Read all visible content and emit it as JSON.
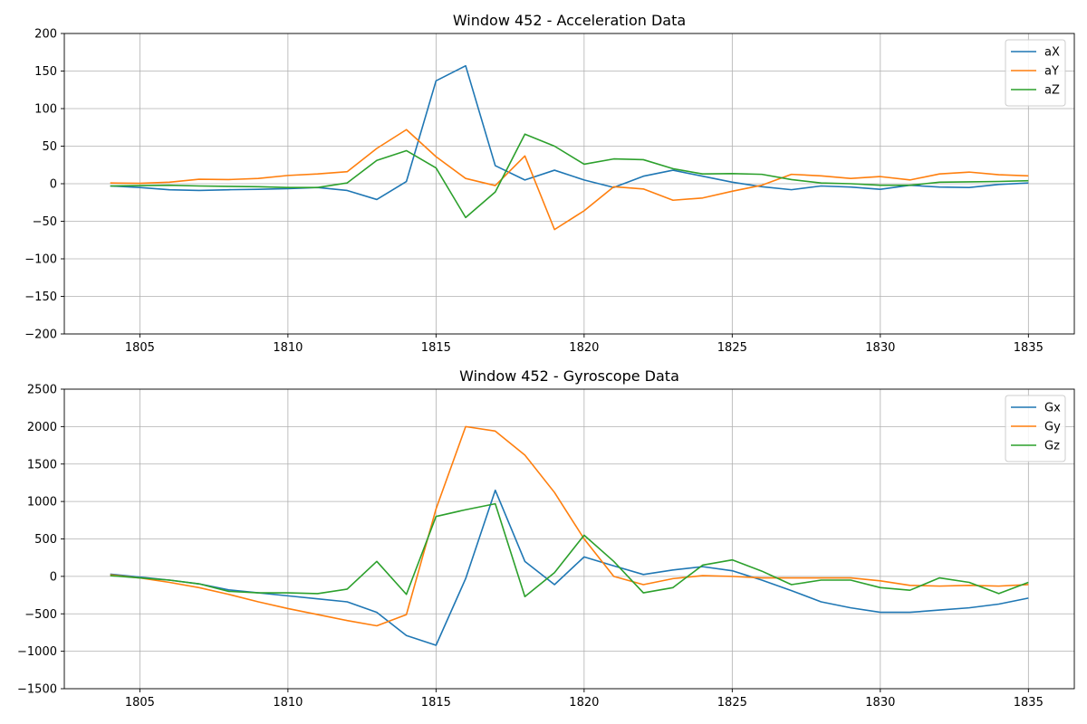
{
  "chart_data": [
    {
      "type": "line",
      "title": "Window 452 - Acceleration Data",
      "xlabel": "",
      "ylabel": "",
      "xlim": [
        1802.45,
        1836.55
      ],
      "ylim": [
        -200,
        200
      ],
      "xticks": [
        1805,
        1810,
        1815,
        1820,
        1825,
        1830,
        1835
      ],
      "yticks": [
        -200,
        -150,
        -100,
        -50,
        0,
        50,
        100,
        150,
        200
      ],
      "grid": true,
      "legend_position": "top-right",
      "x": [
        1804,
        1805,
        1806,
        1807,
        1808,
        1809,
        1810,
        1811,
        1812,
        1813,
        1814,
        1815,
        1816,
        1817,
        1818,
        1819,
        1820,
        1821,
        1822,
        1823,
        1824,
        1825,
        1826,
        1827,
        1828,
        1829,
        1830,
        1831,
        1832,
        1833,
        1834,
        1835
      ],
      "series": [
        {
          "name": "aX",
          "color": "#1f77b4",
          "values": [
            -3,
            -5,
            -8,
            -9,
            -8,
            -7.5,
            -6.5,
            -5,
            -9,
            -21,
            3,
            137,
            157,
            24,
            5,
            18,
            5,
            -5,
            10,
            18,
            10,
            2,
            -4,
            -8,
            -3,
            -4.5,
            -7.5,
            -2,
            -4.5,
            -5,
            -1,
            1
          ]
        },
        {
          "name": "aY",
          "color": "#ff7f0e",
          "values": [
            1,
            0.5,
            2,
            6,
            5.5,
            7,
            11,
            13,
            16,
            47,
            72,
            36,
            7,
            -2.5,
            37,
            -61,
            -36,
            -4,
            -7,
            -22,
            -19,
            -10,
            -2,
            12.5,
            10.5,
            7,
            9.5,
            5,
            13,
            15.5,
            12,
            10.5
          ]
        },
        {
          "name": "aZ",
          "color": "#2ca02c",
          "values": [
            -3,
            -2.5,
            -2,
            -3,
            -3.5,
            -4,
            -5,
            -5,
            1,
            31,
            44,
            21,
            -45,
            -11,
            66,
            50,
            26,
            33,
            32,
            20,
            13,
            13.5,
            12.5,
            5.5,
            1,
            0,
            -2,
            -2,
            2,
            2.5,
            3,
            4
          ]
        }
      ]
    },
    {
      "type": "line",
      "title": "Window 452 - Gyroscope Data",
      "xlabel": "",
      "ylabel": "",
      "xlim": [
        1802.45,
        1836.55
      ],
      "ylim": [
        -1500,
        2500
      ],
      "xticks": [
        1805,
        1810,
        1815,
        1820,
        1825,
        1830,
        1835
      ],
      "yticks": [
        -1500,
        -1000,
        -500,
        0,
        500,
        1000,
        1500,
        2000,
        2500
      ],
      "grid": true,
      "legend_position": "top-right",
      "x": [
        1804,
        1805,
        1806,
        1807,
        1808,
        1809,
        1810,
        1811,
        1812,
        1813,
        1814,
        1815,
        1816,
        1817,
        1818,
        1819,
        1820,
        1821,
        1822,
        1823,
        1824,
        1825,
        1826,
        1827,
        1828,
        1829,
        1830,
        1831,
        1832,
        1833,
        1834,
        1835
      ],
      "series": [
        {
          "name": "Gx",
          "color": "#1f77b4",
          "values": [
            30,
            -10,
            -50,
            -100,
            -180,
            -220,
            -260,
            -300,
            -340,
            -480,
            -790,
            -920,
            -30,
            1150,
            200,
            -110,
            260,
            140,
            25,
            85,
            130,
            75,
            -50,
            -190,
            -340,
            -420,
            -480,
            -480,
            -450,
            -420,
            -370,
            -290
          ]
        },
        {
          "name": "Gy",
          "color": "#ff7f0e",
          "values": [
            20,
            -20,
            -80,
            -150,
            -240,
            -340,
            -430,
            -510,
            -590,
            -660,
            -510,
            900,
            2000,
            1940,
            1620,
            1120,
            500,
            0,
            -110,
            -30,
            10,
            0,
            -20,
            -20,
            -20,
            -20,
            -60,
            -120,
            -130,
            -120,
            -130,
            -110
          ]
        },
        {
          "name": "Gz",
          "color": "#2ca02c",
          "values": [
            10,
            -20,
            -50,
            -100,
            -200,
            -220,
            -220,
            -230,
            -170,
            200,
            -240,
            800,
            890,
            970,
            -270,
            50,
            550,
            200,
            -220,
            -150,
            150,
            220,
            70,
            -110,
            -50,
            -50,
            -150,
            -185,
            -20,
            -80,
            -230,
            -80
          ]
        }
      ]
    }
  ]
}
